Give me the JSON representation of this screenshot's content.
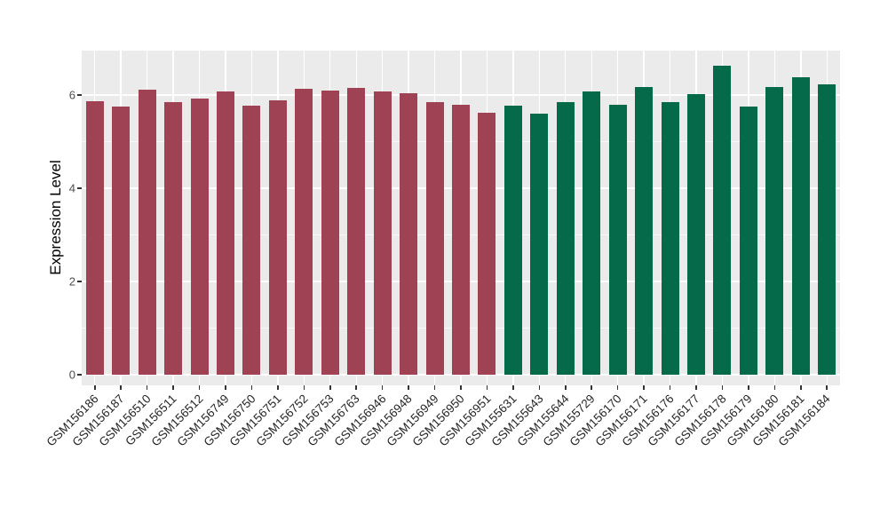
{
  "chart_data": {
    "type": "bar",
    "title": "",
    "xlabel": "",
    "ylabel": "Expression Level",
    "categories": [
      "GSM156186",
      "GSM156187",
      "GSM156510",
      "GSM156511",
      "GSM156512",
      "GSM156749",
      "GSM156750",
      "GSM156751",
      "GSM156752",
      "GSM156753",
      "GSM156763",
      "GSM156946",
      "GSM156948",
      "GSM156949",
      "GSM156950",
      "GSM156951",
      "GSM155631",
      "GSM155643",
      "GSM155644",
      "GSM155729",
      "GSM156170",
      "GSM156171",
      "GSM156176",
      "GSM156177",
      "GSM156178",
      "GSM156179",
      "GSM156180",
      "GSM156181",
      "GSM156184"
    ],
    "values": [
      5.87,
      5.75,
      6.12,
      5.85,
      5.93,
      6.08,
      5.78,
      5.88,
      6.13,
      6.1,
      6.15,
      6.08,
      6.03,
      5.85,
      5.8,
      5.62,
      5.77,
      5.6,
      5.85,
      6.08,
      5.8,
      6.17,
      5.84,
      6.02,
      6.63,
      5.76,
      6.17,
      6.38,
      6.22
    ],
    "groups": [
      "group1",
      "group1",
      "group1",
      "group1",
      "group1",
      "group1",
      "group1",
      "group1",
      "group1",
      "group1",
      "group1",
      "group1",
      "group1",
      "group1",
      "group1",
      "group1",
      "group2",
      "group2",
      "group2",
      "group2",
      "group2",
      "group2",
      "group2",
      "group2",
      "group2",
      "group2",
      "group2",
      "group2",
      "group2"
    ],
    "group_colors": {
      "group1": "#9E4254",
      "group2": "#056A49"
    },
    "yticks": [
      0,
      2,
      4,
      6
    ],
    "y_minor_ticks": [
      1,
      3,
      5
    ],
    "ylim": [
      0,
      6.95
    ],
    "grid": "on",
    "legend": "none",
    "panel_background": "#EBEBEB",
    "gridline_color": "#FFFFFF",
    "y_axis_text_color": "#4D4D4D",
    "x_axis_text_color": "#262626",
    "tick_mark_color": "#333333"
  }
}
